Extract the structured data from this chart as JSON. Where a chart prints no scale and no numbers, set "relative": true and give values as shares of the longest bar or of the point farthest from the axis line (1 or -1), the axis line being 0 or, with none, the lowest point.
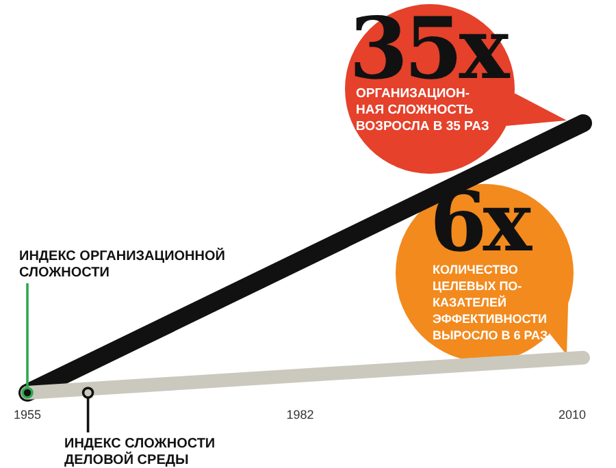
{
  "chart_data": {
    "type": "line",
    "relative": true,
    "x": [
      1955,
      2010
    ],
    "xlim": [
      1955,
      2010
    ],
    "xticks": [
      1955,
      1982,
      2010
    ],
    "series": [
      {
        "name": "ИНДЕКС ОРГАНИЗАЦИОННОЙ\nСЛОЖНОСТИ",
        "color": "#111111",
        "values": [
          0,
          1
        ]
      },
      {
        "name": "ИНДЕКС СЛОЖНОСТИ\nДЕЛОВОЙ СРЕДЫ",
        "color": "#cbc9bd",
        "values": [
          0,
          0.13
        ]
      }
    ],
    "annotations": [
      "35x",
      "ОРГАНИЗАЦИОН-\nНАЯ СЛОЖНОСТЬ\nВОЗРОСЛА В 35 РАЗ",
      "6x",
      "КОЛИЧЕСТВО\nЦЕЛЕВЫХ ПО-\nКАЗАТЕЛЕЙ\nЭФФЕКТИВНОСТИ\nВЫРОСЛО В 6 РАЗ"
    ],
    "legend": false,
    "grid": false
  }
}
